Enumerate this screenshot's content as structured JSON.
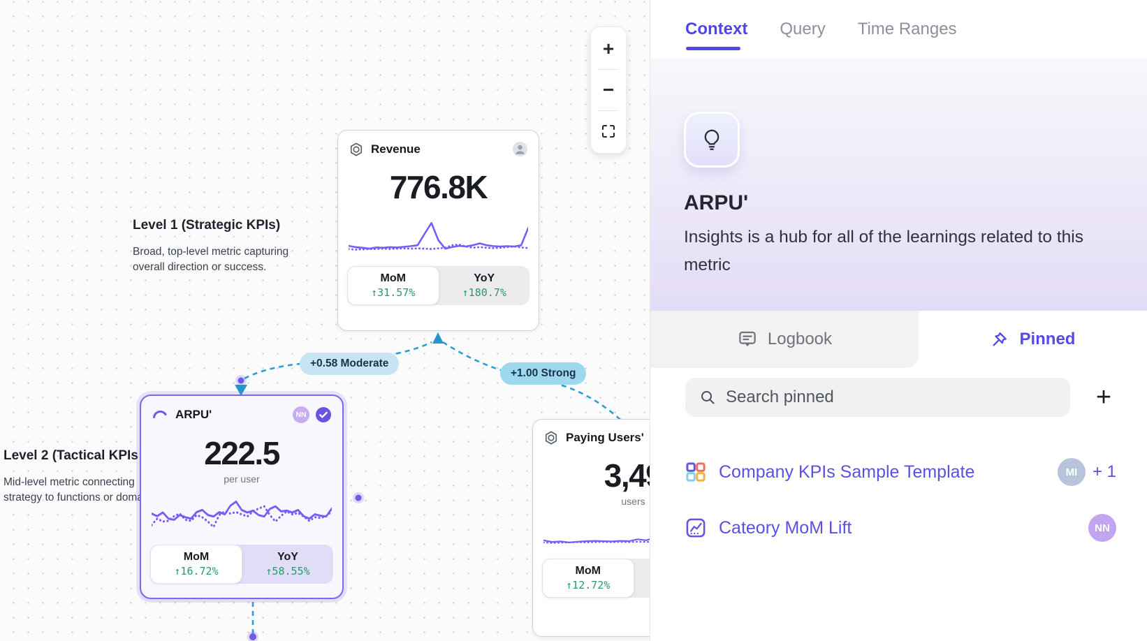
{
  "colors": {
    "accent": "#4f46e5",
    "spark_line": "#7a5af8",
    "positive_value": "#279a68",
    "edge": "#2a9fd6",
    "edge_label_moderate_bg": "#c7e4f4",
    "edge_label_strong_bg": "#9ed8ee",
    "selected_node_border": "#7b68e8"
  },
  "canvas": {
    "zoom_toolbar": {
      "zoom_in": "+",
      "zoom_out": "−"
    },
    "levels": [
      {
        "title": "Level 1 (Strategic KPIs)",
        "lines": [
          "Broad, top-level metric capturing",
          "overall direction or success."
        ]
      },
      {
        "title": "Level 2 (Tactical KPIs",
        "lines": [
          "Mid-level metric connecting",
          "strategy to functions or doma"
        ]
      }
    ],
    "edges": [
      {
        "label": "+0.58 Moderate"
      },
      {
        "label": "+1.00 Strong"
      }
    ],
    "cards": {
      "revenue": {
        "title": "Revenue",
        "value": "776.8K",
        "stats": [
          {
            "label": "MoM",
            "value": "↑31.57%"
          },
          {
            "label": "YoY",
            "value": "↑180.7%"
          }
        ],
        "spark": {
          "solid": [
            0.22,
            0.18,
            0.16,
            0.13,
            0.17,
            0.16,
            0.18,
            0.17,
            0.19,
            0.21,
            0.24,
            0.6,
            0.95,
            0.4,
            0.13,
            0.18,
            0.22,
            0.2,
            0.24,
            0.3,
            0.24,
            0.21,
            0.2,
            0.21,
            0.2,
            0.24,
            0.78
          ],
          "dotted": [
            0.12,
            0.1,
            0.11,
            0.12,
            0.12,
            0.13,
            0.12,
            0.13,
            0.14,
            0.13,
            0.14,
            0.13,
            0.12,
            0.14,
            0.16,
            0.24,
            0.26,
            0.2,
            0.16,
            0.18,
            0.16,
            0.15,
            0.16,
            0.18,
            0.2,
            0.17,
            0.15
          ]
        }
      },
      "arpu": {
        "title": "ARPU'",
        "value": "222.5",
        "unit": "per user",
        "avatar": "NN",
        "stats": [
          {
            "label": "MoM",
            "value": "↑16.72%"
          },
          {
            "label": "YoY",
            "value": "↑58.55%"
          }
        ],
        "spark": {
          "solid": [
            0.52,
            0.45,
            0.55,
            0.38,
            0.35,
            0.48,
            0.42,
            0.38,
            0.56,
            0.62,
            0.48,
            0.44,
            0.56,
            0.5,
            0.74,
            0.85,
            0.62,
            0.55,
            0.6,
            0.48,
            0.44,
            0.65,
            0.72,
            0.58,
            0.6,
            0.55,
            0.62,
            0.45,
            0.38,
            0.5,
            0.46,
            0.44,
            0.66
          ],
          "dotted": [
            0.2,
            0.38,
            0.3,
            0.32,
            0.45,
            0.52,
            0.35,
            0.32,
            0.48,
            0.42,
            0.3,
            0.15,
            0.48,
            0.58,
            0.52,
            0.56,
            0.5,
            0.44,
            0.58,
            0.66,
            0.72,
            0.48,
            0.3,
            0.46,
            0.58,
            0.5,
            0.54,
            0.44,
            0.32,
            0.42,
            0.4,
            0.45,
            0.58
          ]
        }
      },
      "paying_users": {
        "title": "Paying Users'",
        "value": "3,49",
        "unit": "users",
        "stats": [
          {
            "label": "MoM",
            "value": "↑12.72%"
          }
        ],
        "spark": {
          "solid": [
            0.2,
            0.14,
            0.16,
            0.12,
            0.15,
            0.17,
            0.18,
            0.17,
            0.16,
            0.18,
            0.17,
            0.24,
            0.2,
            0.3,
            0.95,
            0.45,
            0.16,
            0.2,
            0.22,
            0.2,
            0.21,
            0.24
          ],
          "dotted": [
            0.12,
            0.1,
            0.11,
            0.12,
            0.13,
            0.12,
            0.13,
            0.14,
            0.13,
            0.14,
            0.13,
            0.15,
            0.14,
            0.15,
            0.16,
            0.15,
            0.14,
            0.15,
            0.14,
            0.15,
            0.14,
            0.15
          ]
        }
      }
    }
  },
  "panel": {
    "tabs": [
      {
        "label": "Context",
        "active": true
      },
      {
        "label": "Query"
      },
      {
        "label": "Time Ranges"
      }
    ],
    "hero": {
      "title": "ARPU'",
      "description": "Insights is a hub for all of the learnings related to this metric"
    },
    "subtabs": [
      {
        "label": "Logbook"
      },
      {
        "label": "Pinned",
        "active": true
      }
    ],
    "search": {
      "placeholder": "Search pinned"
    },
    "add_button": "+",
    "pinned_items": [
      {
        "label": "Company KPIs Sample Template",
        "avatar": "MI",
        "extra": "+ 1"
      },
      {
        "label": "Cateory MoM Lift",
        "avatar": "NN"
      }
    ]
  }
}
